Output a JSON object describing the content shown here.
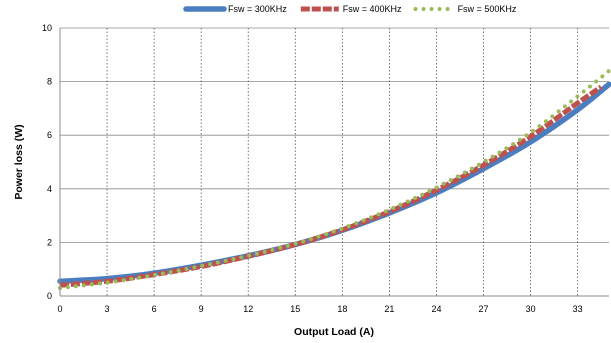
{
  "chart_data": {
    "type": "line",
    "title": "",
    "xlabel": "Output Load (A)",
    "ylabel": "Power loss (W)",
    "xlim": [
      0,
      35
    ],
    "ylim": [
      0,
      10
    ],
    "x_ticks": [
      0,
      3,
      6,
      9,
      12,
      15,
      18,
      21,
      24,
      27,
      30,
      33
    ],
    "y_ticks": [
      0,
      2,
      4,
      6,
      8,
      10
    ],
    "grid": {
      "x": "dotted-vertical",
      "y": "solid-horizontal"
    },
    "legend_position": "top-center",
    "series": [
      {
        "name": "Fsw = 300KHz",
        "color": "#4a7ec0",
        "style": "thick-line",
        "x": [
          0,
          3,
          6,
          9,
          12,
          15,
          18,
          21,
          24,
          27,
          30,
          33,
          35
        ],
        "y": [
          0.55,
          0.65,
          0.85,
          1.15,
          1.5,
          1.92,
          2.45,
          3.1,
          3.85,
          4.75,
          5.75,
          6.95,
          7.9
        ]
      },
      {
        "name": "Fsw = 400KHz",
        "color": "#c0504d",
        "style": "dashed-line",
        "x": [
          0,
          3,
          6,
          9,
          12,
          15,
          18,
          21,
          24,
          27,
          30,
          33,
          34.5
        ],
        "y": [
          0.4,
          0.55,
          0.8,
          1.1,
          1.48,
          1.92,
          2.47,
          3.15,
          3.95,
          4.88,
          5.95,
          7.2,
          7.8
        ]
      },
      {
        "name": "Fsw = 500KHz",
        "color": "#9bbb59",
        "style": "dotted",
        "x": [
          0,
          3,
          6,
          9,
          12,
          15,
          18,
          21,
          24,
          27,
          30,
          33,
          35
        ],
        "y": [
          0.3,
          0.5,
          0.78,
          1.12,
          1.5,
          1.95,
          2.52,
          3.22,
          4.05,
          5.0,
          6.1,
          7.45,
          8.4
        ]
      }
    ]
  }
}
